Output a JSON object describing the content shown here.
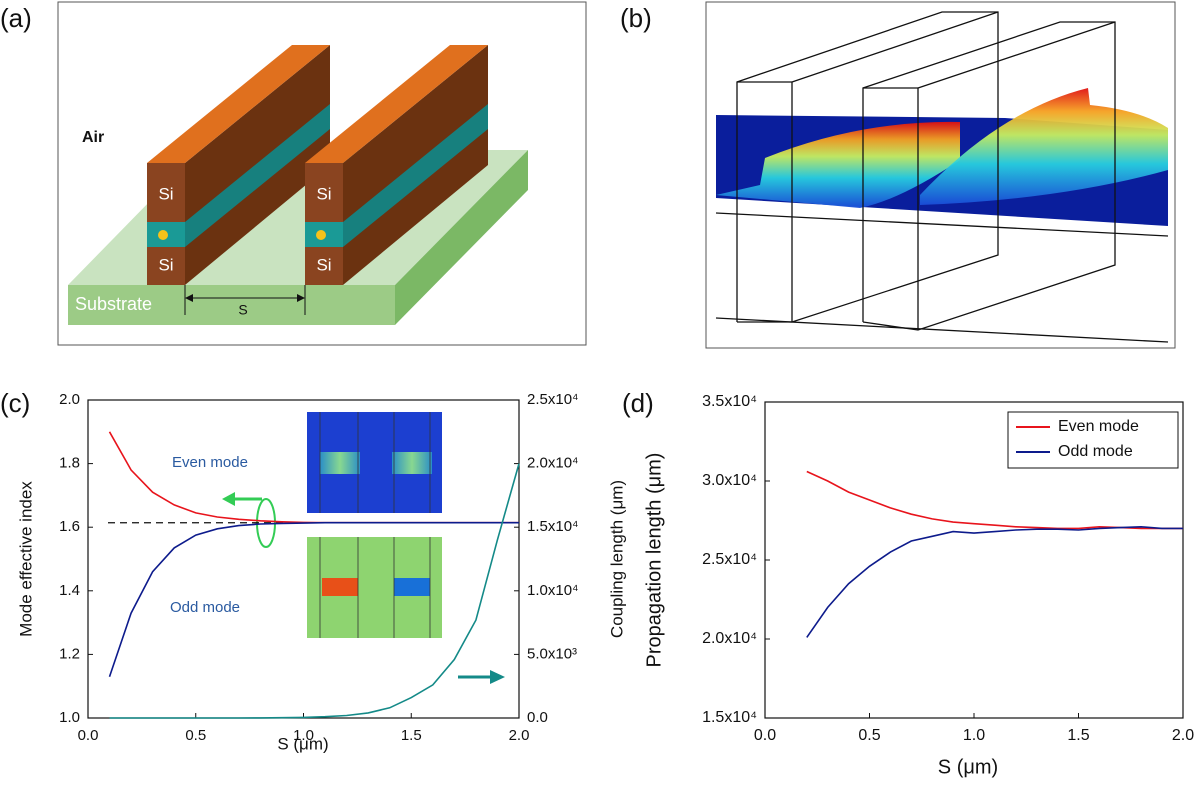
{
  "diagram_a": {
    "panel_label": "(a)",
    "air": "Air",
    "si": [
      "Si",
      "Si",
      "Si",
      "Si"
    ],
    "substrate": "Substrate",
    "gap": "S"
  },
  "diagram_b": {
    "panel_label": "(b)"
  },
  "chart_data": [
    {
      "type": "line",
      "panel_label": "(c)",
      "xlabel": "S (μm)",
      "ylabel": "Mode effective index",
      "y2label": "Coupling length (μm)",
      "x": [
        0.1,
        0.2,
        0.3,
        0.4,
        0.5,
        0.6,
        0.7,
        0.8,
        0.9,
        1.0,
        1.1,
        1.2,
        1.3,
        1.4,
        1.5,
        1.6,
        1.7,
        1.8,
        1.9,
        2.0
      ],
      "xlim": [
        0,
        2
      ],
      "xticks": [
        {
          "value": 0,
          "label": "0.0"
        },
        0.5,
        {
          "value": 1,
          "label": "1.0"
        },
        1.5,
        {
          "value": 2,
          "label": "2.0"
        }
      ],
      "ylim": [
        1,
        2
      ],
      "yticks": [
        {
          "value": 1,
          "label": "1.0"
        },
        1.2,
        1.4,
        1.6,
        1.8,
        {
          "value": 2,
          "label": "2.0"
        }
      ],
      "y2lim": [
        0,
        25000
      ],
      "y2ticks": [
        {
          "value": 0,
          "label": "0.0"
        },
        {
          "value": 5000,
          "label": "5.0x10³"
        },
        {
          "value": 10000,
          "label": "1.0x10⁴"
        },
        {
          "value": 15000,
          "label": "1.5x10⁴"
        },
        {
          "value": 20000,
          "label": "2.0x10⁴"
        },
        {
          "value": 25000,
          "label": "2.5x10⁴"
        }
      ],
      "hline": 1.614,
      "annotations": [
        "Even mode",
        "Odd mode"
      ],
      "series": [
        {
          "color": "#e8141c",
          "values": [
            1.9,
            1.78,
            1.71,
            1.67,
            1.645,
            1.632,
            1.625,
            1.62,
            1.617,
            1.615,
            1.614,
            1.614,
            1.614,
            1.614,
            1.614,
            1.614,
            1.614,
            1.614,
            1.614,
            1.614
          ]
        },
        {
          "color": "#0d1b8c",
          "values": [
            1.13,
            1.33,
            1.46,
            1.535,
            1.575,
            1.595,
            1.605,
            1.61,
            1.612,
            1.613,
            1.614,
            1.614,
            1.614,
            1.614,
            1.614,
            1.614,
            1.614,
            1.614,
            1.614,
            1.614
          ]
        },
        {
          "color": "#148a88",
          "axis": "y2",
          "values": [
            0,
            0,
            0,
            0,
            0,
            0,
            0,
            10,
            20,
            50,
            100,
            200,
            400,
            800,
            1600,
            2600,
            4600,
            7700,
            14000,
            20000
          ]
        }
      ]
    },
    {
      "type": "line",
      "panel_label": "(d)",
      "xlabel": "S (μm)",
      "ylabel": "Propagation length (μm)",
      "x": [
        0.2,
        0.3,
        0.4,
        0.5,
        0.6,
        0.7,
        0.8,
        0.9,
        1.0,
        1.1,
        1.2,
        1.3,
        1.4,
        1.5,
        1.6,
        1.7,
        1.8,
        1.9,
        2.0
      ],
      "xlim": [
        0,
        2
      ],
      "xticks": [
        {
          "value": 0,
          "label": "0.0"
        },
        0.5,
        {
          "value": 1,
          "label": "1.0"
        },
        1.5,
        {
          "value": 2,
          "label": "2.0"
        }
      ],
      "ylim": [
        15000,
        35000
      ],
      "yticks": [
        {
          "value": 15000,
          "label": "1.5x10⁴"
        },
        {
          "value": 20000,
          "label": "2.0x10⁴"
        },
        {
          "value": 25000,
          "label": "2.5x10⁴"
        },
        {
          "value": 30000,
          "label": "3.0x10⁴"
        },
        {
          "value": 35000,
          "label": "3.5x10⁴"
        }
      ],
      "legend": "upper right",
      "series": [
        {
          "name": "Even mode",
          "color": "#e8141c",
          "values": [
            30600,
            30000,
            29300,
            28800,
            28300,
            27900,
            27600,
            27400,
            27300,
            27200,
            27100,
            27050,
            27000,
            27000,
            27100,
            27050,
            27000,
            27000,
            27000
          ]
        },
        {
          "name": "Odd mode",
          "color": "#0d1b8c",
          "values": [
            20100,
            22000,
            23500,
            24600,
            25500,
            26200,
            26500,
            26800,
            26700,
            26800,
            26900,
            26950,
            26950,
            26900,
            27000,
            27050,
            27100,
            27000,
            27000
          ]
        }
      ]
    }
  ]
}
